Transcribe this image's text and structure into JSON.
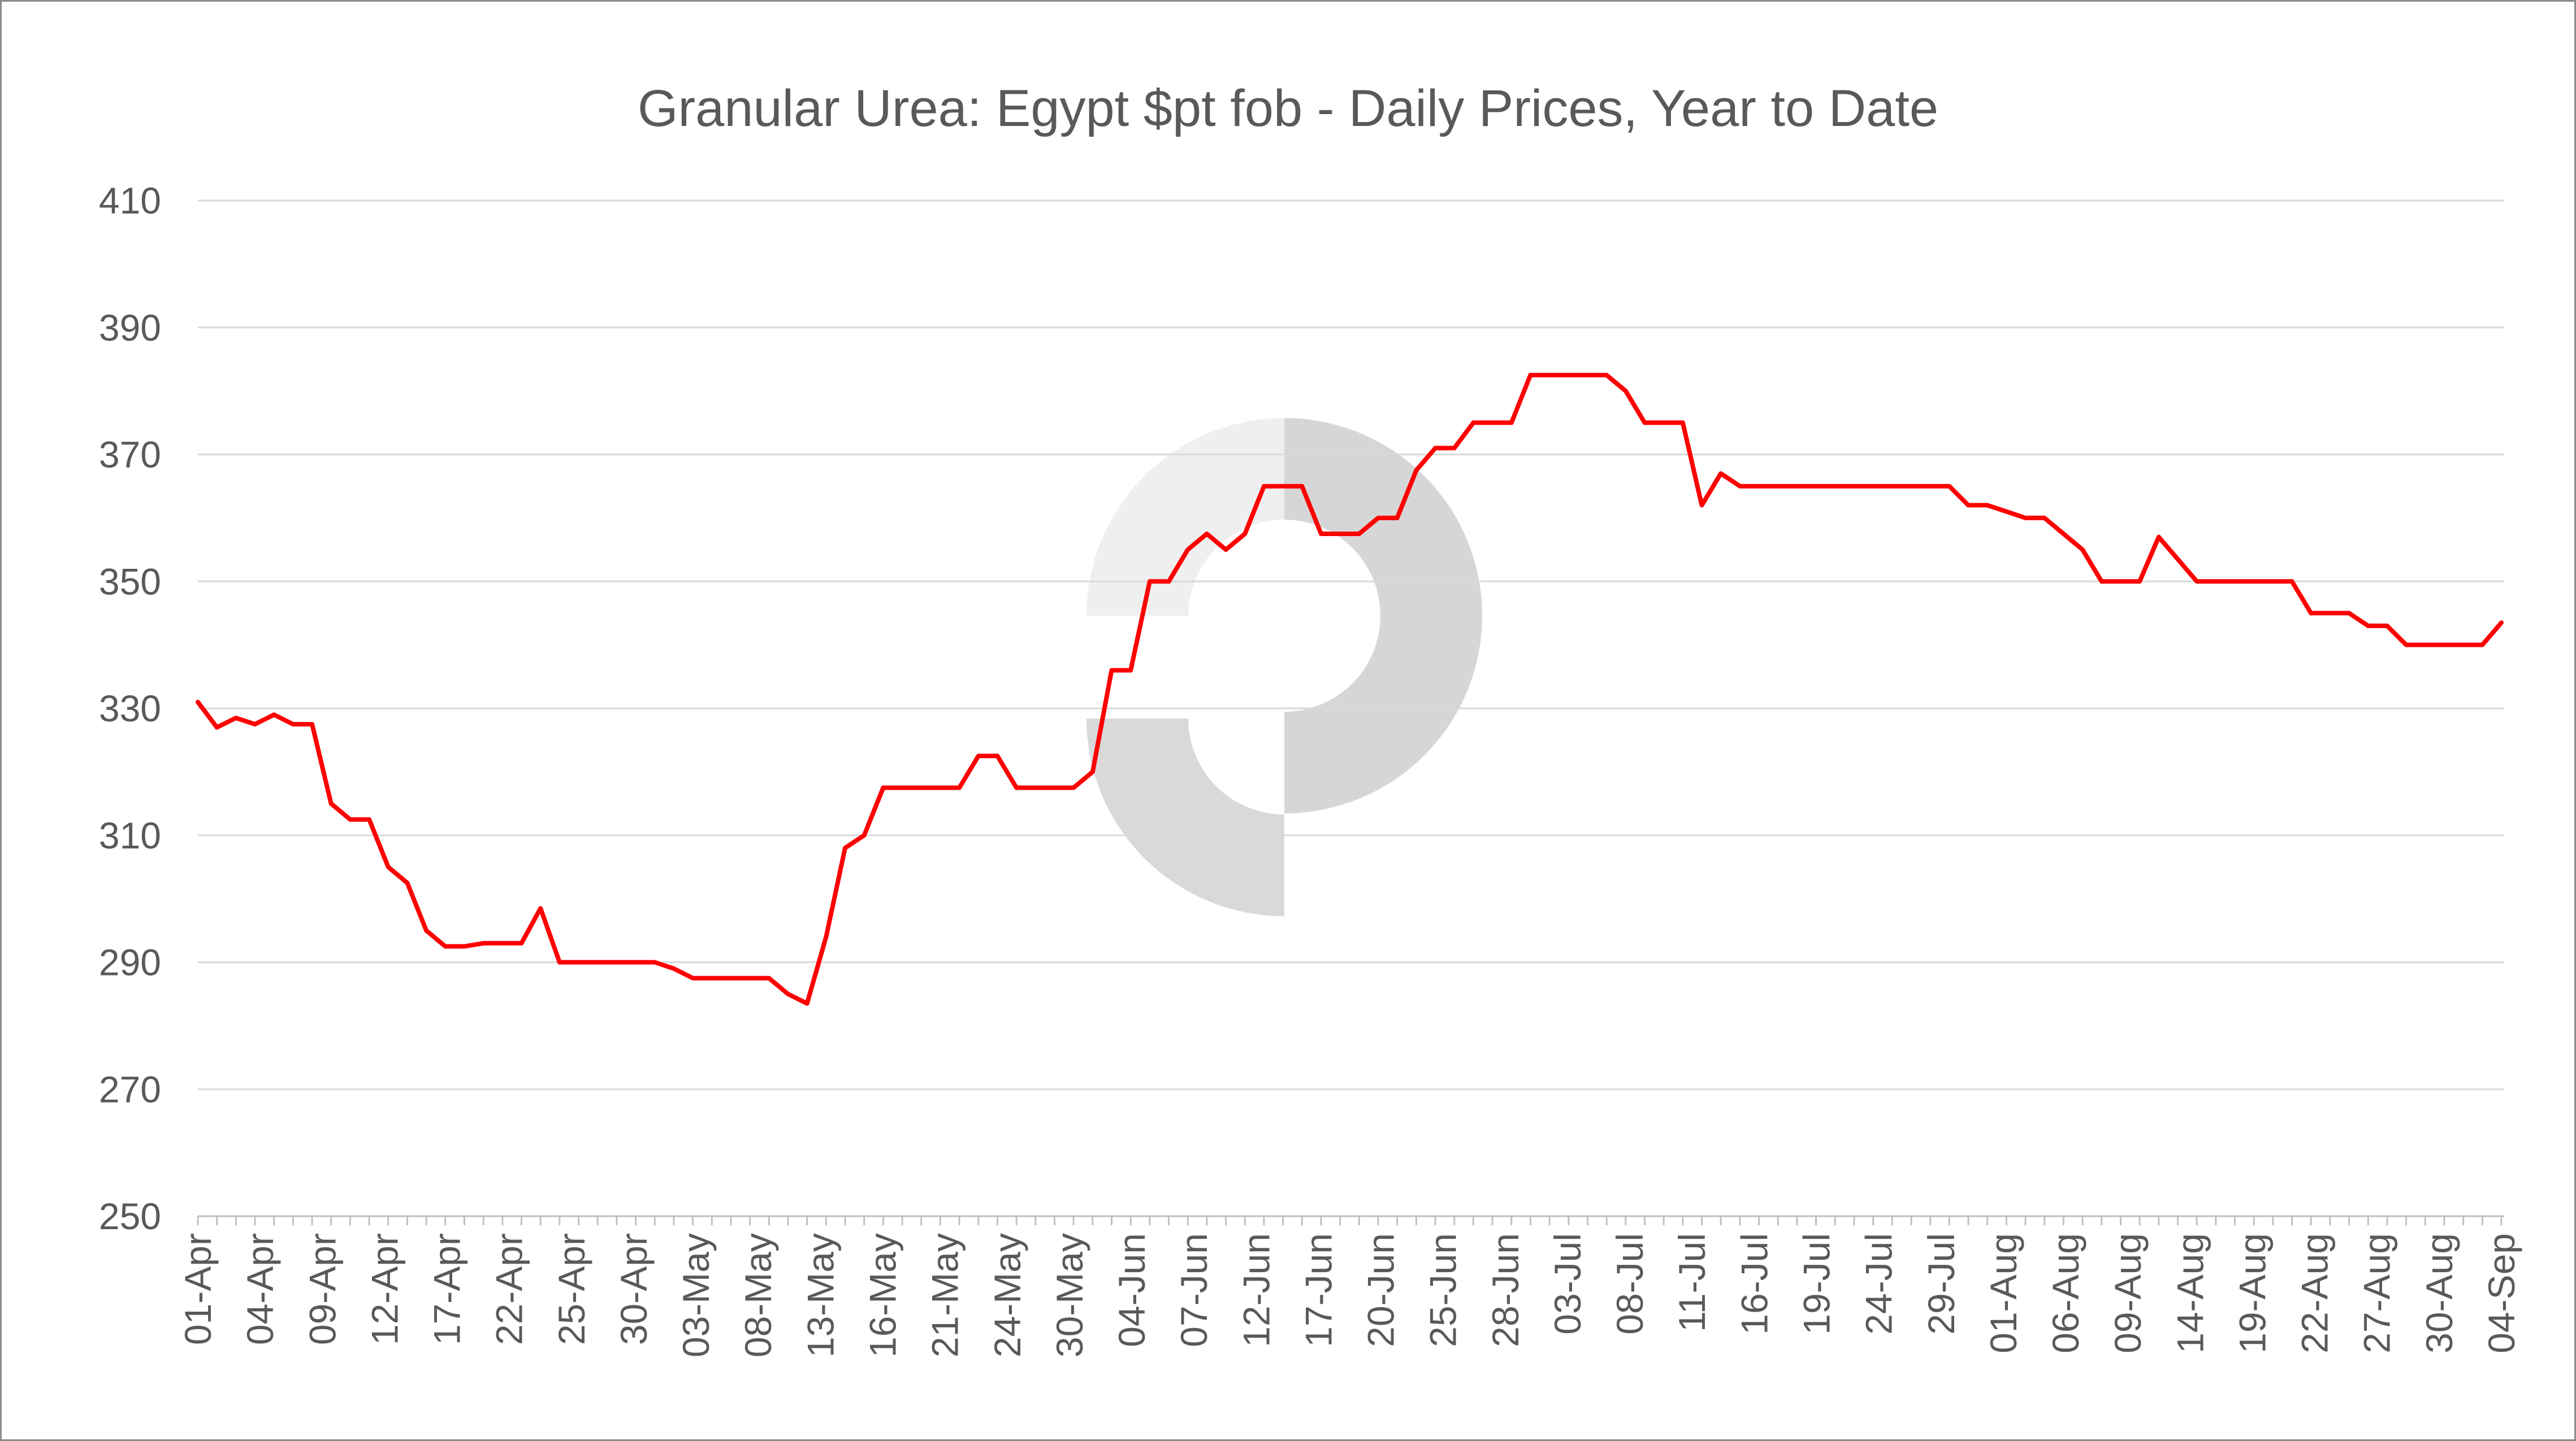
{
  "chart_data": {
    "type": "line",
    "title": "Granular Urea: Egypt $pt fob - Daily Prices, Year to Date",
    "xlabel": "",
    "ylabel": "",
    "ylim": [
      250,
      410
    ],
    "yticks": [
      250,
      270,
      290,
      310,
      330,
      350,
      370,
      390,
      410
    ],
    "grid": true,
    "legend": "none",
    "x_tick_labels": [
      "01-Apr",
      "04-Apr",
      "09-Apr",
      "12-Apr",
      "17-Apr",
      "22-Apr",
      "25-Apr",
      "30-Apr",
      "03-May",
      "08-May",
      "13-May",
      "16-May",
      "21-May",
      "24-May",
      "30-May",
      "04-Jun",
      "07-Jun",
      "12-Jun",
      "17-Jun",
      "20-Jun",
      "25-Jun",
      "28-Jun",
      "03-Jul",
      "08-Jul",
      "11-Jul",
      "16-Jul",
      "19-Jul",
      "24-Jul",
      "29-Jul",
      "01-Aug",
      "06-Aug",
      "09-Aug",
      "14-Aug",
      "19-Aug",
      "22-Aug",
      "27-Aug",
      "30-Aug",
      "04-Sep"
    ],
    "series": [
      {
        "color": "#ff0000",
        "values": [
          331,
          327,
          328.5,
          327.5,
          329,
          327.5,
          327.5,
          315,
          312.5,
          312.5,
          305,
          302.5,
          295,
          292.5,
          292.5,
          293,
          293,
          293,
          298.5,
          290,
          290,
          290,
          290,
          290,
          290,
          289,
          287.5,
          287.5,
          287.5,
          287.5,
          287.5,
          285,
          283.5,
          294,
          308,
          310,
          317.5,
          317.5,
          317.5,
          317.5,
          317.5,
          322.5,
          322.5,
          317.5,
          317.5,
          317.5,
          317.5,
          320,
          336,
          336,
          350,
          350,
          355,
          357.5,
          355,
          357.5,
          365,
          365,
          365,
          357.5,
          357.5,
          357.5,
          360,
          360,
          367.5,
          371,
          371,
          375,
          375,
          375,
          382.5,
          382.5,
          382.5,
          382.5,
          382.5,
          380,
          375,
          375,
          375,
          362,
          367,
          365,
          365,
          365,
          365,
          365,
          365,
          365,
          365,
          365,
          365,
          365,
          365,
          362,
          362,
          361,
          360,
          360,
          357.5,
          355,
          350,
          350,
          350,
          357,
          353.5,
          350,
          350,
          350,
          350,
          350,
          350,
          345,
          345,
          345,
          343,
          343,
          340,
          340,
          340,
          340,
          340,
          343.5
        ]
      }
    ]
  },
  "watermark": {
    "color": "#d9d9d9",
    "icon": "brand-logo-watermark"
  }
}
